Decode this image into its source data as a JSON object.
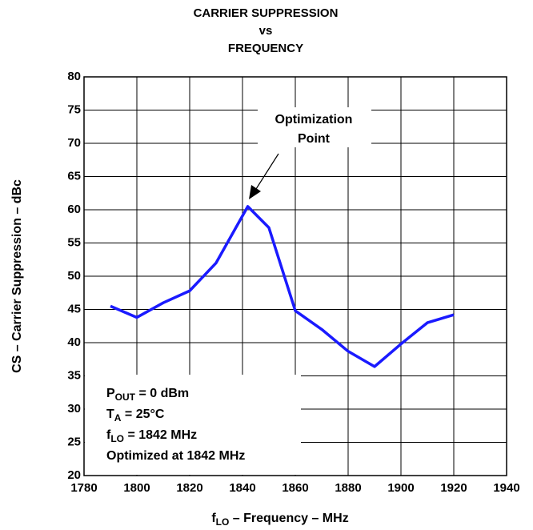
{
  "chart_data": {
    "type": "line",
    "title": [
      "CARRIER SUPPRESSION",
      "vs",
      "FREQUENCY"
    ],
    "y_label": "CS – Carrier Suppression – dBc",
    "x_label": {
      "main": "f",
      "sub": "LO",
      "rest": " – Frequency – MHz"
    },
    "x": [
      1790,
      1800,
      1810,
      1820,
      1830,
      1842,
      1850,
      1860,
      1870,
      1880,
      1890,
      1900,
      1910,
      1920
    ],
    "series": [
      {
        "name": "CS",
        "color": "#1a1aff",
        "values": [
          45.5,
          43.8,
          46,
          47.8,
          52,
          60.5,
          57.3,
          44.8,
          42,
          38.7,
          36.4,
          39.8,
          43,
          44.2
        ]
      }
    ],
    "xlim": [
      1780,
      1940
    ],
    "xticks": [
      1780,
      1800,
      1820,
      1840,
      1860,
      1880,
      1900,
      1920,
      1940
    ],
    "ylim": [
      20,
      80
    ],
    "yticks": [
      20,
      25,
      30,
      35,
      40,
      45,
      50,
      55,
      60,
      65,
      70,
      75,
      80
    ],
    "grid": true,
    "annotation": [
      "Optimization",
      "Point"
    ],
    "conditions": [
      {
        "main": "P",
        "sub": "OUT",
        "rest": " = 0 dBm"
      },
      {
        "main": "T",
        "sub": "A",
        "rest": " = 25°C"
      },
      {
        "main": "f",
        "sub": "LO",
        "rest": " = 1842 MHz"
      },
      {
        "main": "Optimized at 1842 MHz"
      }
    ]
  }
}
